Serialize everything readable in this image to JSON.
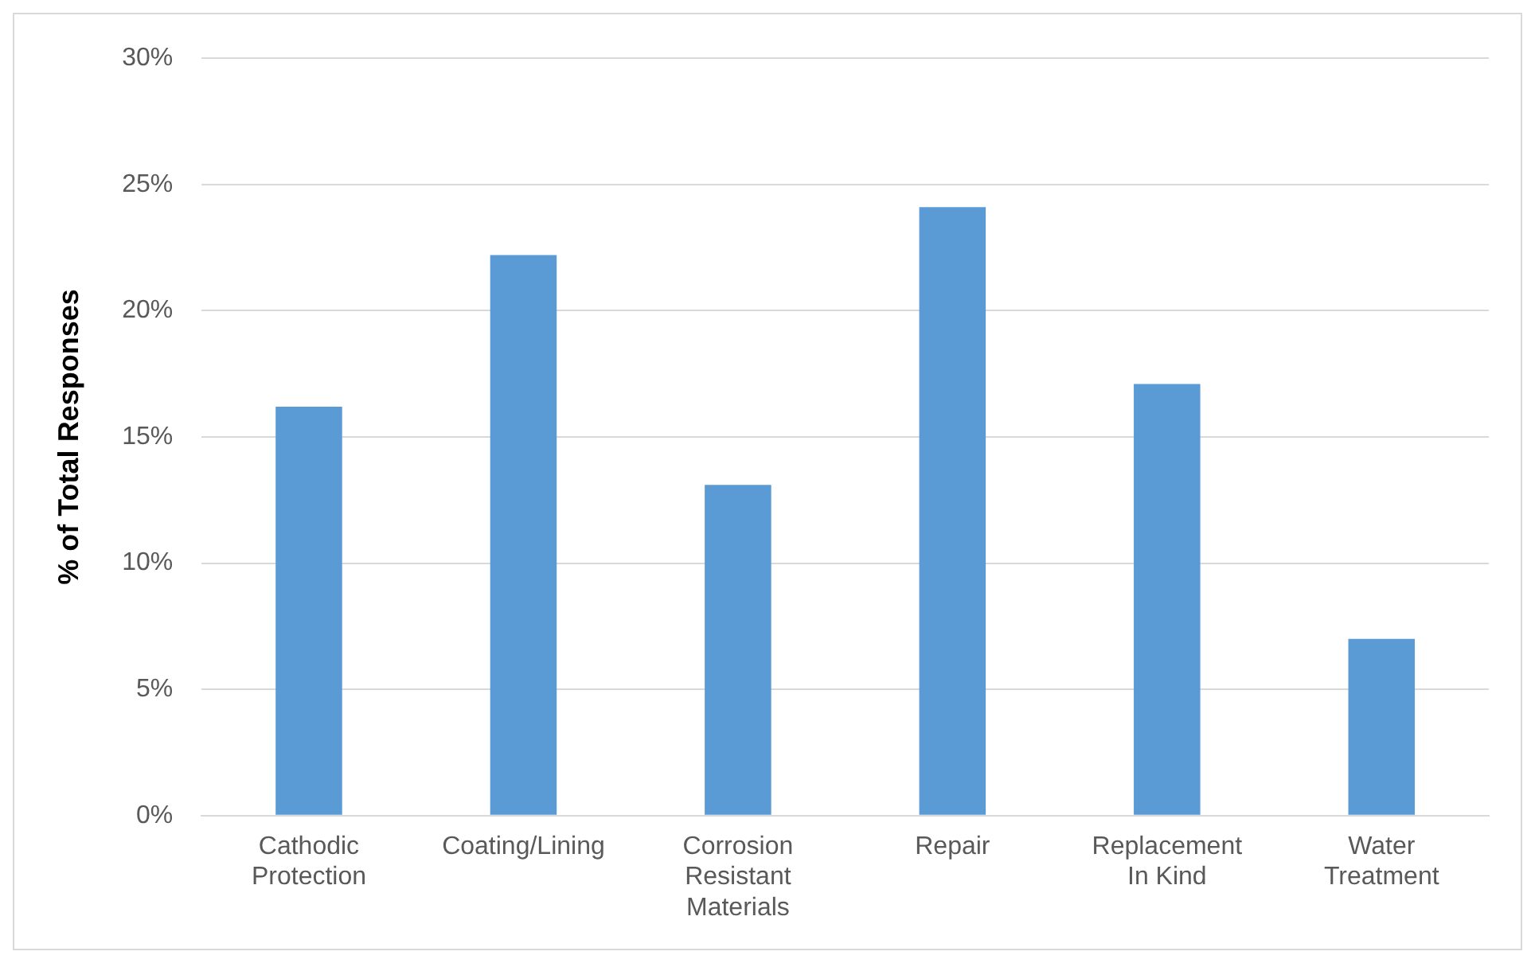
{
  "chart_data": {
    "type": "bar",
    "ylabel": "% of Total Responses",
    "categories": [
      "Cathodic Protection",
      "Coating/Lining",
      "Corrosion Resistant Materials",
      "Repair",
      "Replacement In Kind",
      "Water Treatment"
    ],
    "values": [
      16.2,
      22.2,
      13.1,
      24.1,
      17.1,
      7.0
    ],
    "color": "#5b9bd5",
    "ylim": [
      0,
      30
    ],
    "yticks": [
      {
        "value": 0,
        "label": "0%"
      },
      {
        "value": 5,
        "label": "5%"
      },
      {
        "value": 10,
        "label": "10%"
      },
      {
        "value": 15,
        "label": "15%"
      },
      {
        "value": 20,
        "label": "20%"
      },
      {
        "value": 25,
        "label": "25%"
      },
      {
        "value": 30,
        "label": "30%"
      }
    ],
    "grid": "y",
    "legend": false
  }
}
